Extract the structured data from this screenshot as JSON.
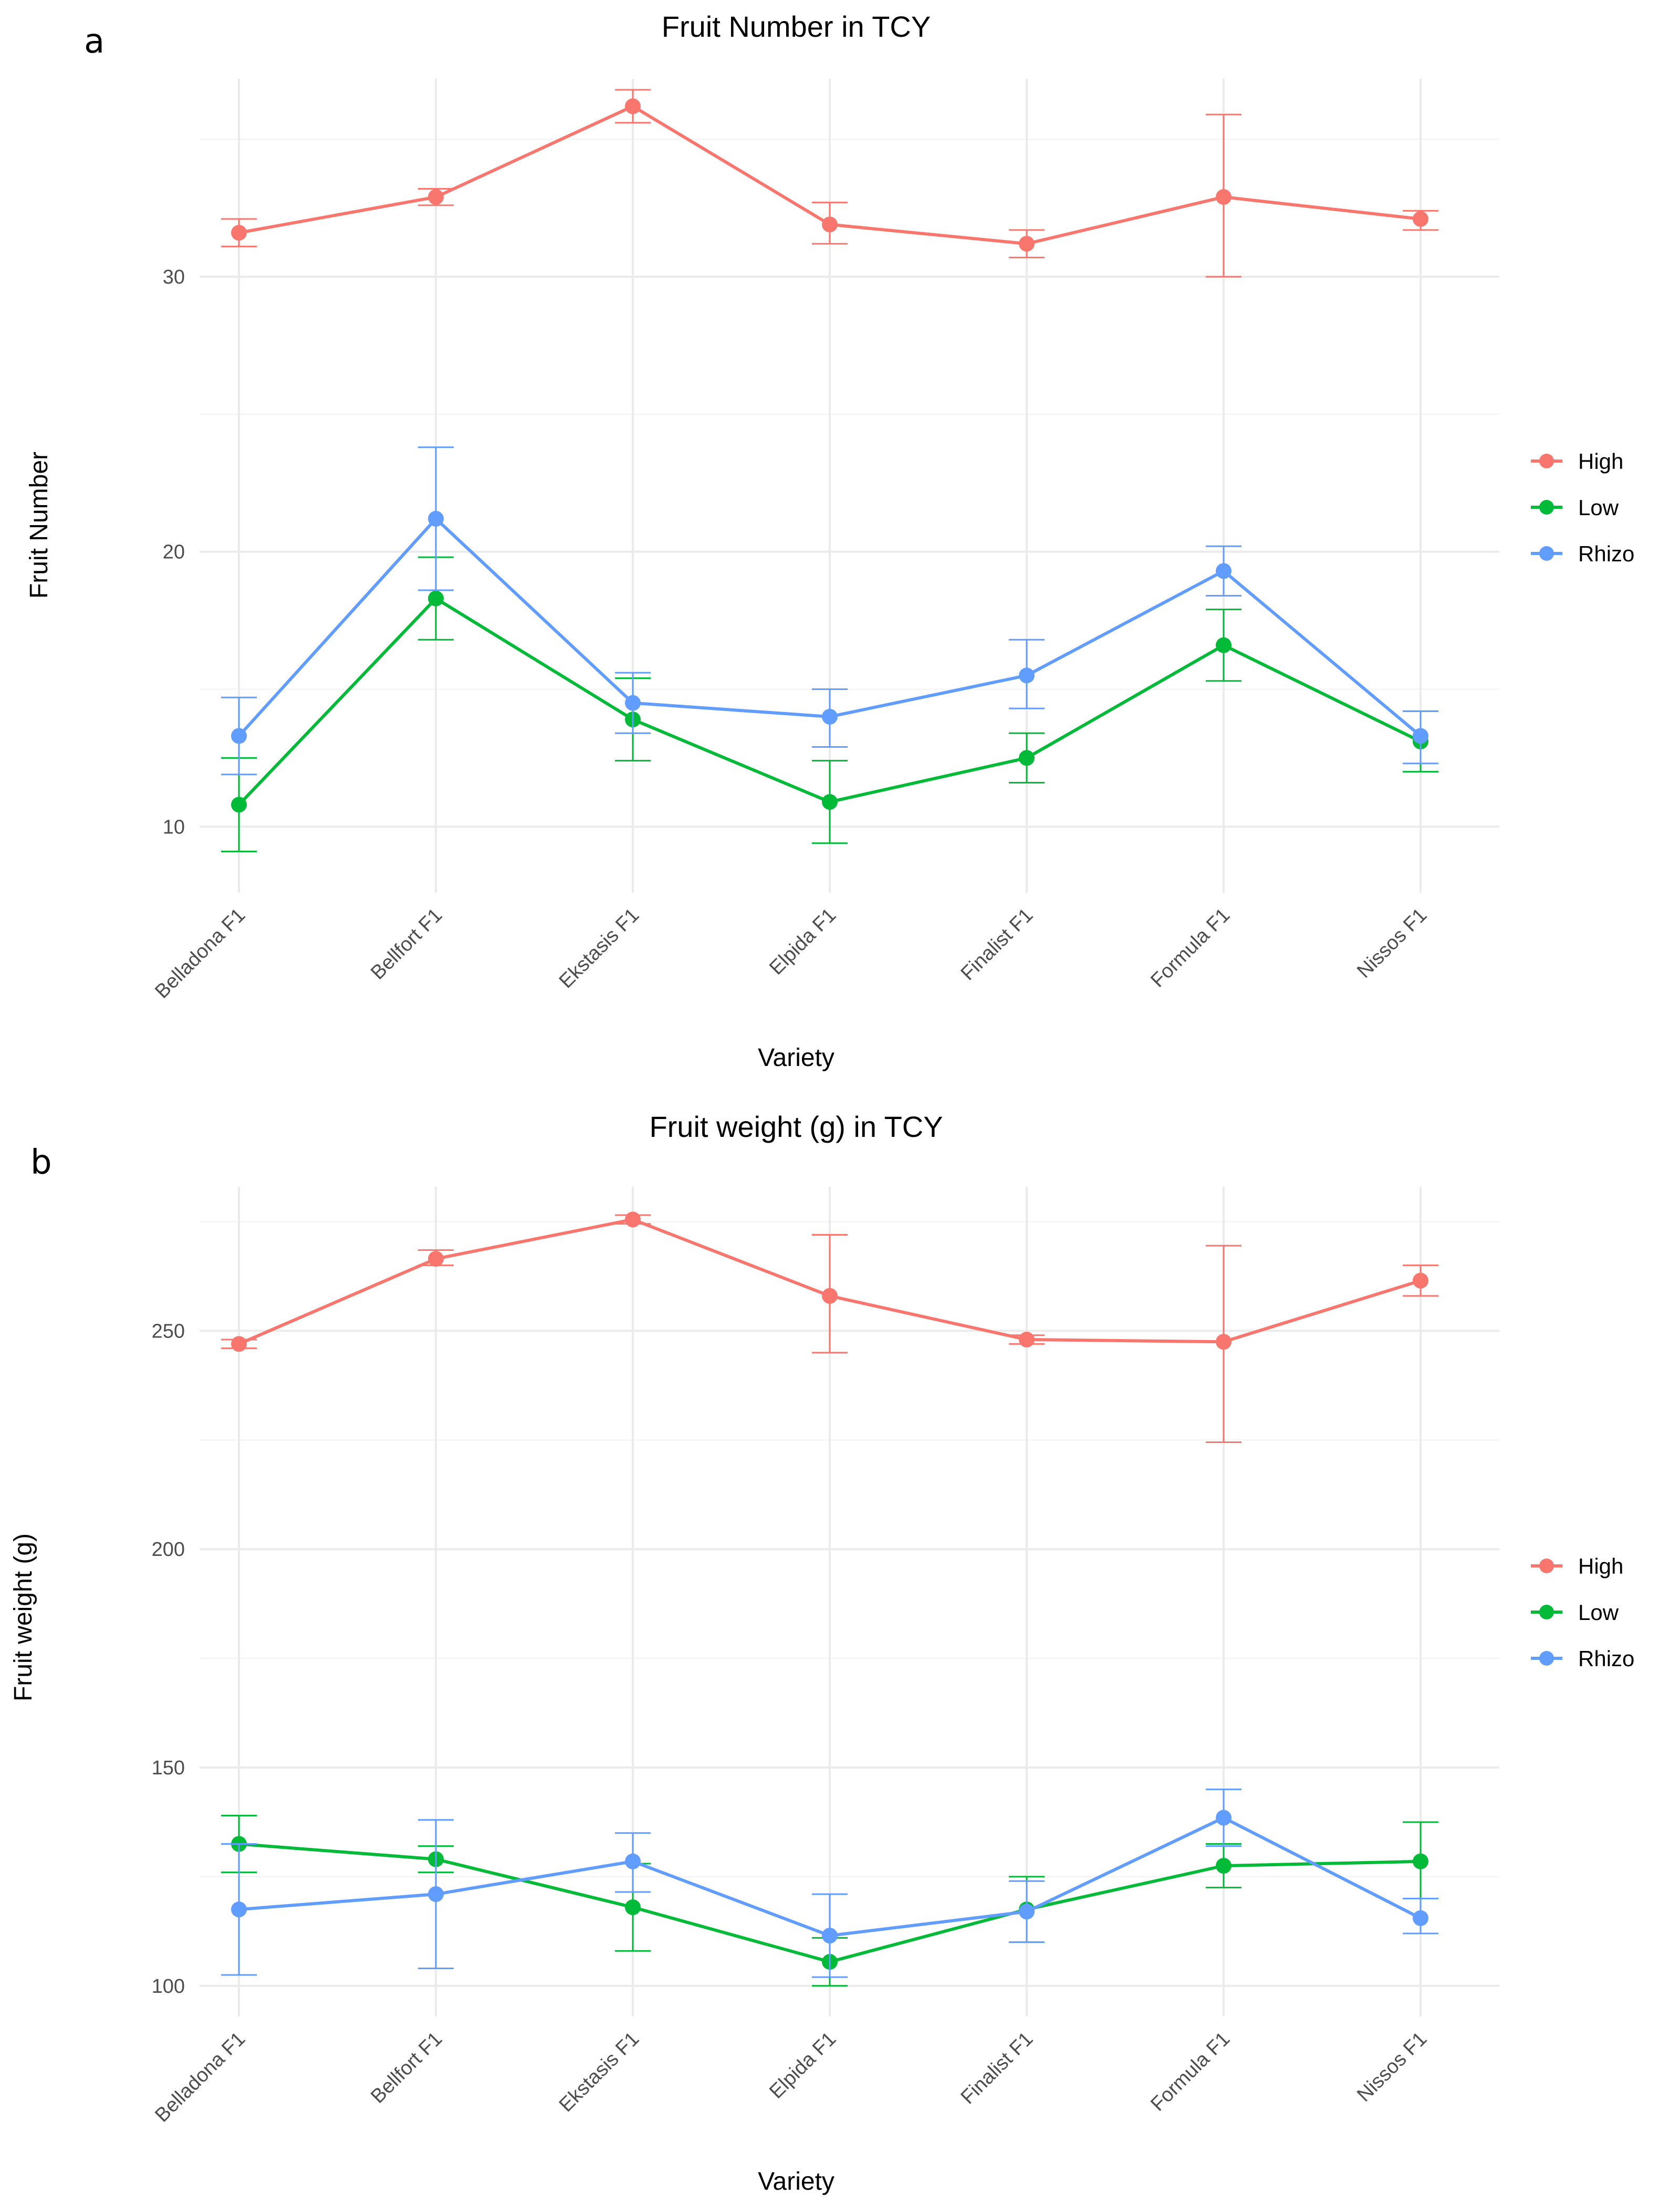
{
  "figure": {
    "panels": [
      {
        "label": "a",
        "title": "Fruit Number in TCY",
        "xlabel": "Variety",
        "ylabel": "Fruit Number"
      },
      {
        "label": "b",
        "title": "Fruit weight (g) in TCY",
        "xlabel": "Variety",
        "ylabel": "Fruit weight (g)"
      }
    ],
    "legend": {
      "items": [
        {
          "name": "High",
          "color": "#F8766D"
        },
        {
          "name": "Low",
          "color": "#00BA38"
        },
        {
          "name": "Rhizo",
          "color": "#619CFF"
        }
      ]
    }
  },
  "chart_data": [
    {
      "type": "line",
      "title": "Fruit Number in TCY",
      "xlabel": "Variety",
      "ylabel": "Fruit Number",
      "categories": [
        "Belladona F1",
        "Bellfort F1",
        "Ekstasis F1",
        "Elpida F1",
        "Finalist F1",
        "Formula F1",
        "Nissos F1"
      ],
      "ylim": [
        7.6,
        37.2
      ],
      "yticks": [
        10,
        20,
        30
      ],
      "grid": true,
      "legend_position": "right",
      "series": [
        {
          "name": "High",
          "color": "#F8766D",
          "values": [
            31.6,
            32.9,
            36.2,
            31.9,
            31.2,
            32.9,
            32.1
          ],
          "err_low": [
            31.1,
            32.6,
            35.6,
            31.2,
            30.7,
            30.0,
            31.7
          ],
          "err_high": [
            32.1,
            33.2,
            36.8,
            32.7,
            31.7,
            35.9,
            32.4
          ]
        },
        {
          "name": "Low",
          "color": "#00BA38",
          "values": [
            10.8,
            18.3,
            13.9,
            10.9,
            12.5,
            16.6,
            13.1
          ],
          "err_low": [
            9.1,
            16.8,
            12.4,
            9.4,
            11.6,
            15.3,
            12.0
          ],
          "err_high": [
            12.5,
            19.8,
            15.4,
            12.4,
            13.4,
            17.9,
            14.2
          ]
        },
        {
          "name": "Rhizo",
          "color": "#619CFF",
          "values": [
            13.3,
            21.2,
            14.5,
            14.0,
            15.5,
            19.3,
            13.3
          ],
          "err_low": [
            11.9,
            18.6,
            13.4,
            12.9,
            14.3,
            18.4,
            12.3
          ],
          "err_high": [
            14.7,
            23.8,
            15.6,
            15.0,
            16.8,
            20.2,
            14.2
          ]
        }
      ]
    },
    {
      "type": "line",
      "title": "Fruit weight (g) in TCY",
      "xlabel": "Variety",
      "ylabel": "Fruit weight (g)",
      "categories": [
        "Belladona F1",
        "Bellfort F1",
        "Ekstasis F1",
        "Elpida F1",
        "Finalist F1",
        "Formula F1",
        "Nissos F1"
      ],
      "ylim": [
        93,
        283
      ],
      "yticks": [
        100,
        150,
        200,
        250
      ],
      "grid": true,
      "legend_position": "right",
      "series": [
        {
          "name": "High",
          "color": "#F8766D",
          "values": [
            247,
            266.5,
            275.5,
            258,
            248,
            247.5,
            261.5
          ],
          "err_low": [
            246,
            265,
            274.5,
            245,
            247,
            224.5,
            258
          ],
          "err_high": [
            248,
            268.5,
            276.5,
            272,
            249,
            269.5,
            265
          ]
        },
        {
          "name": "Low",
          "color": "#00BA38",
          "values": [
            132.5,
            129,
            118,
            105.5,
            117.5,
            127.5,
            128.5
          ],
          "err_low": [
            126,
            126,
            108,
            100,
            110,
            122.5,
            120
          ],
          "err_high": [
            139,
            132,
            128,
            111,
            125,
            132.5,
            137.5
          ]
        },
        {
          "name": "Rhizo",
          "color": "#619CFF",
          "values": [
            117.5,
            121,
            128.5,
            111.5,
            117,
            138.5,
            115.5
          ],
          "err_low": [
            102.5,
            104,
            121.5,
            102,
            110,
            132,
            112
          ],
          "err_high": [
            132.5,
            138,
            135,
            121,
            124,
            145,
            120
          ]
        }
      ]
    }
  ]
}
